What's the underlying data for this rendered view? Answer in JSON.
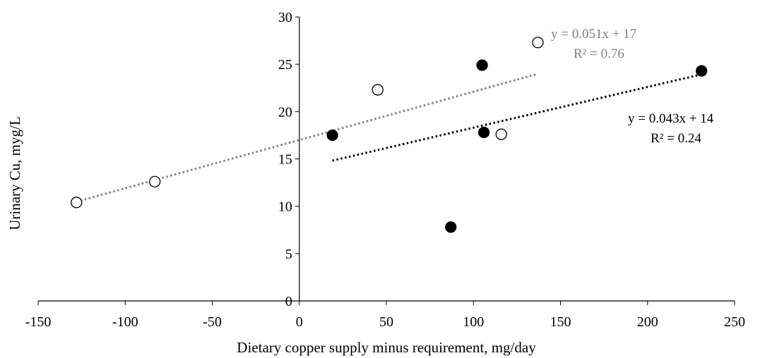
{
  "chart_data": {
    "type": "scatter",
    "xlabel": "Dietary copper supply minus requirement, mg/day",
    "ylabel": "Urinary Cu, myg/L",
    "xlim": [
      -150,
      250
    ],
    "ylim": [
      0,
      30
    ],
    "x_ticks": [
      -150,
      -100,
      -50,
      0,
      50,
      100,
      150,
      200,
      250
    ],
    "y_ticks": [
      0,
      5,
      10,
      15,
      20,
      25,
      30
    ],
    "x_tick_labels": [
      "-150",
      "-100",
      "-50",
      "0",
      "50",
      "100",
      "150",
      "200",
      "250"
    ],
    "y_tick_labels": [
      "0",
      "5",
      "10",
      "15",
      "20",
      "25",
      "30"
    ],
    "grid": false,
    "series": [
      {
        "marker": "open-circle",
        "color": "#808080",
        "points": [
          {
            "x": -128,
            "y": 10.4
          },
          {
            "x": -83,
            "y": 12.6
          },
          {
            "x": 45,
            "y": 22.3
          },
          {
            "x": 116,
            "y": 17.6
          },
          {
            "x": 137,
            "y": 27.3
          }
        ],
        "trendline": {
          "style": "dotted",
          "x_range": [
            -128,
            137
          ],
          "slope": 0.051,
          "intercept": 17,
          "equation": "y = 0.051x + 17",
          "r2": "R² = 0.76"
        }
      },
      {
        "marker": "filled-circle",
        "color": "#000000",
        "points": [
          {
            "x": 19,
            "y": 17.5
          },
          {
            "x": 87,
            "y": 7.8
          },
          {
            "x": 105,
            "y": 24.9
          },
          {
            "x": 106,
            "y": 17.8
          },
          {
            "x": 231,
            "y": 24.3
          }
        ],
        "trendline": {
          "style": "dotted",
          "x_range": [
            19,
            231
          ],
          "slope": 0.043,
          "intercept": 14,
          "equation": "y = 0.043x + 14",
          "r2": "R² = 0.24"
        }
      }
    ]
  }
}
